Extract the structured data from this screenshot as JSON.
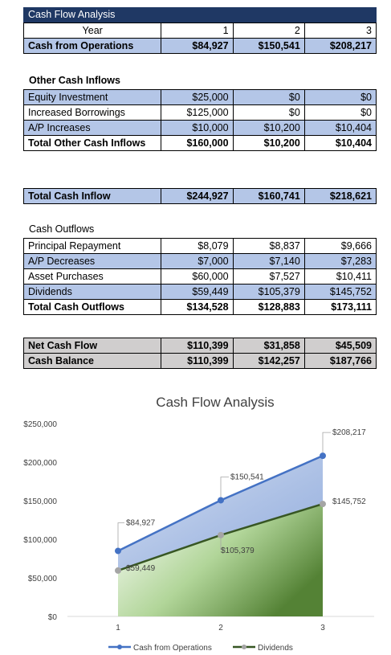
{
  "title": "Cash Flow Analysis",
  "header": {
    "label": "Year",
    "years": [
      "1",
      "2",
      "3"
    ]
  },
  "operations": {
    "label": "Cash from Operations",
    "values": [
      "$84,927",
      "$150,541",
      "$208,217"
    ]
  },
  "other_inflows": {
    "heading": "Other Cash Inflows",
    "rows": [
      {
        "label": "Equity Investment",
        "values": [
          "$25,000",
          "$0",
          "$0"
        ]
      },
      {
        "label": "Increased Borrowings",
        "values": [
          "$125,000",
          "$0",
          "$0"
        ]
      },
      {
        "label": "A/P Increases",
        "values": [
          "$10,000",
          "$10,200",
          "$10,404"
        ]
      }
    ],
    "total": {
      "label": "Total Other Cash Inflows",
      "values": [
        "$160,000",
        "$10,200",
        "$10,404"
      ]
    }
  },
  "total_inflow": {
    "label": "Total Cash Inflow",
    "values": [
      "$244,927",
      "$160,741",
      "$218,621"
    ]
  },
  "outflows": {
    "heading": "Cash Outflows",
    "rows": [
      {
        "label": "Principal Repayment",
        "values": [
          "$8,079",
          "$8,837",
          "$9,666"
        ]
      },
      {
        "label": "A/P Decreases",
        "values": [
          "$7,000",
          "$7,140",
          "$7,283"
        ]
      },
      {
        "label": "Asset Purchases",
        "values": [
          "$60,000",
          "$7,527",
          "$10,411"
        ]
      },
      {
        "label": "Dividends",
        "values": [
          "$59,449",
          "$105,379",
          "$145,752"
        ]
      }
    ],
    "total": {
      "label": "Total Cash Outflows",
      "values": [
        "$134,528",
        "$128,883",
        "$173,111"
      ]
    }
  },
  "net": {
    "label": "Net Cash Flow",
    "values": [
      "$110,399",
      "$31,858",
      "$45,509"
    ]
  },
  "balance": {
    "label": "Cash Balance",
    "values": [
      "$110,399",
      "$142,257",
      "$187,766"
    ]
  },
  "colors": {
    "title_bar": "#1f3864",
    "band": "#b4c6e7",
    "summary": "#d0cece",
    "operations_line": "#4472c4",
    "dividends_line": "#375623"
  },
  "chart_data": {
    "type": "line",
    "title": "Cash Flow Analysis",
    "categories": [
      "1",
      "2",
      "3"
    ],
    "ylim": [
      0,
      250000
    ],
    "yticks": [
      "$0",
      "$50,000",
      "$100,000",
      "$150,000",
      "$200,000",
      "$250,000"
    ],
    "ytick_values": [
      0,
      50000,
      100000,
      150000,
      200000,
      250000
    ],
    "legend_position": "bottom",
    "grid": false,
    "series": [
      {
        "name": "Cash from Operations",
        "values": [
          84927,
          150541,
          208217
        ],
        "labels": [
          "$84,927",
          "$150,541",
          "$208,217"
        ],
        "color": "#4472c4"
      },
      {
        "name": "Dividends",
        "values": [
          59449,
          105379,
          145752
        ],
        "labels": [
          "$59,449",
          "$105,379",
          "$145,752"
        ],
        "color": "#375623"
      }
    ]
  }
}
